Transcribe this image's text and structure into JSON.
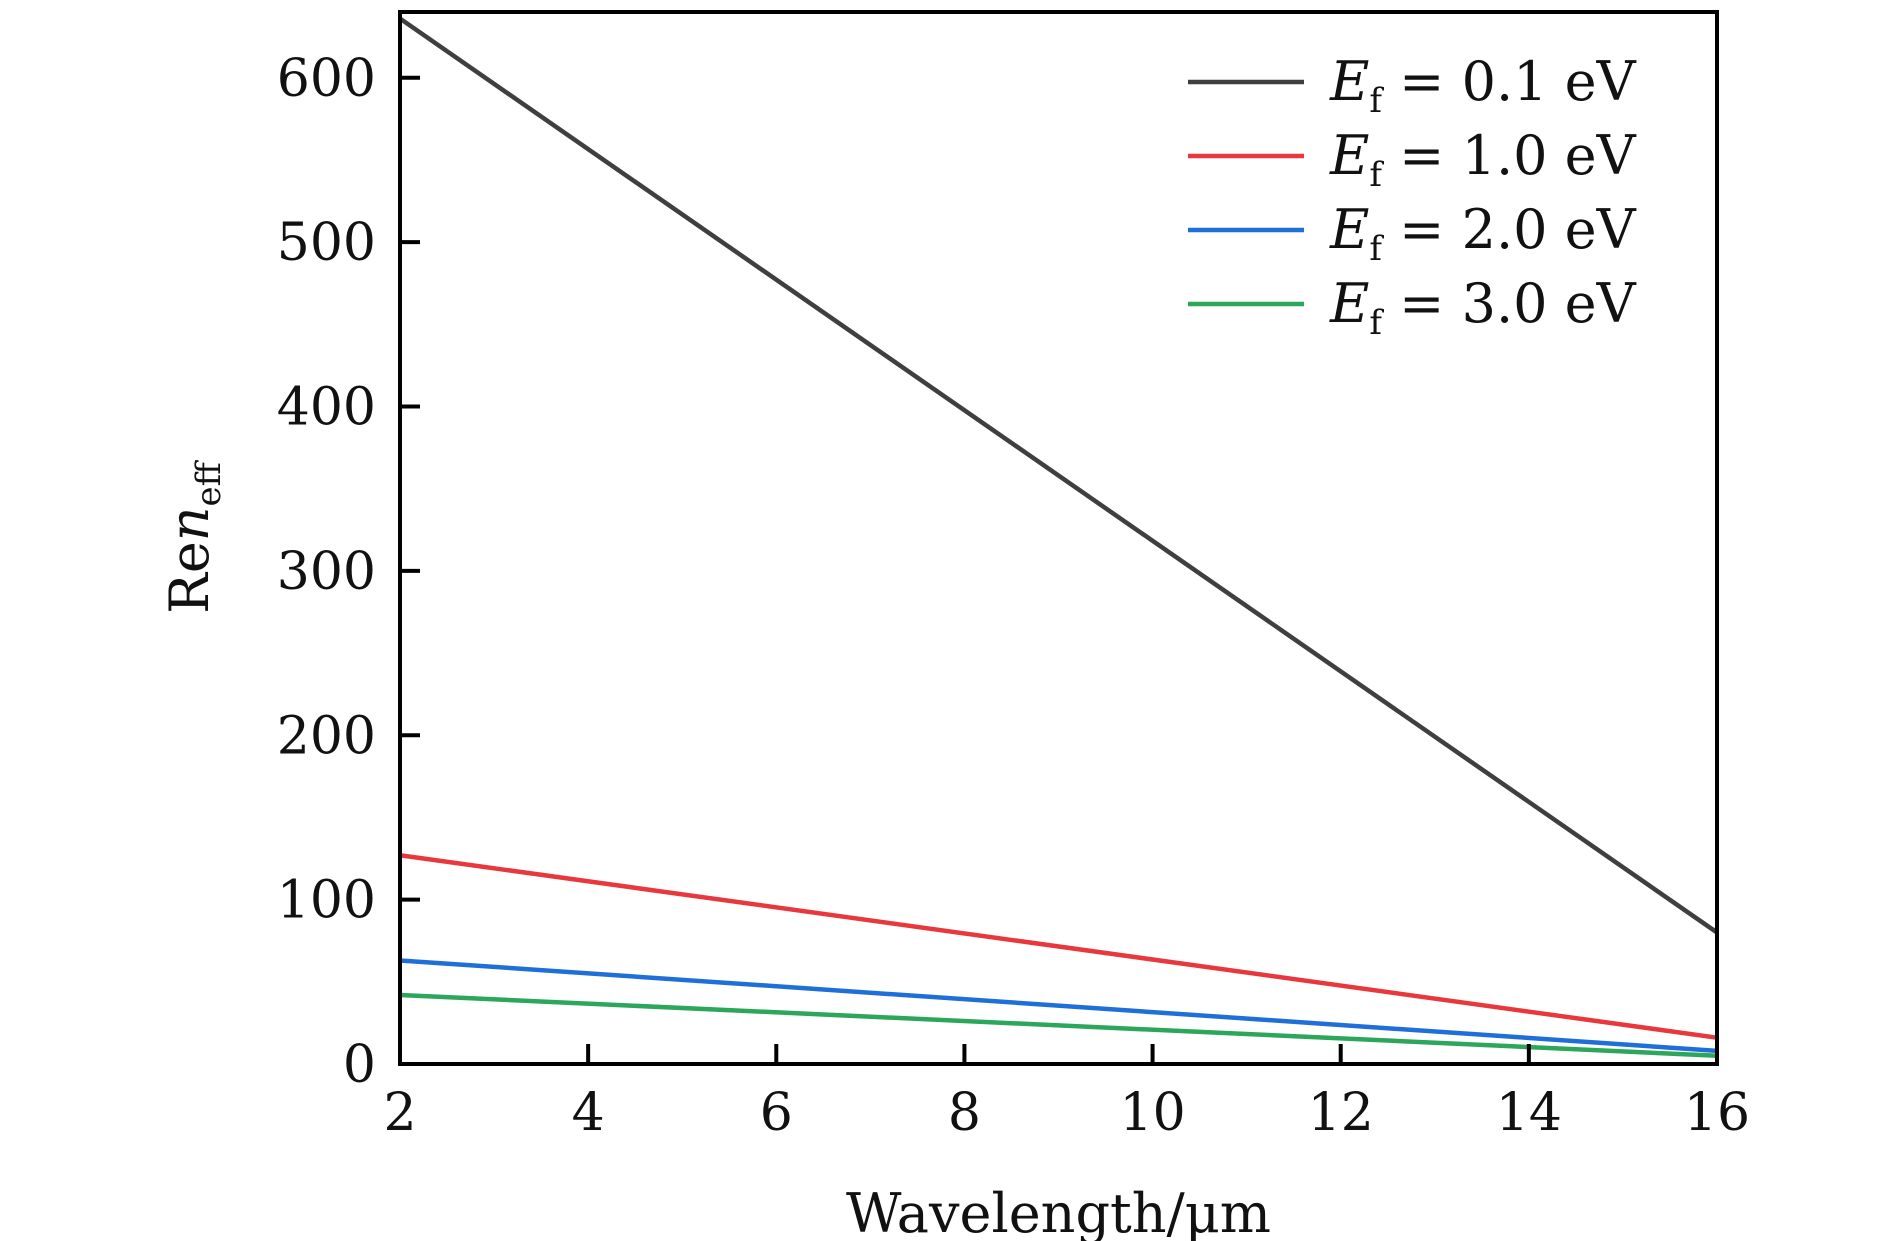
{
  "chart_data": {
    "type": "line",
    "title": "",
    "xlabel": "Wavelength/μm",
    "ylabel": {
      "prefix": "Re",
      "symbol": "n",
      "subscript": "eff"
    },
    "xlim": [
      2,
      16
    ],
    "ylim": [
      0,
      640
    ],
    "xticks": [
      "2",
      "4",
      "6",
      "8",
      "10",
      "12",
      "14",
      "16"
    ],
    "yticks": [
      "0",
      "100",
      "200",
      "300",
      "400",
      "500",
      "600"
    ],
    "grid": false,
    "legend_position": "top-right",
    "series": [
      {
        "name": "Ef = 0.1 eV",
        "label": {
          "symbol": "E",
          "subscript": "f",
          "rest": " = 0.1 eV"
        },
        "color": "#3f3f3f",
        "x": [
          2,
          16
        ],
        "y": [
          636,
          80
        ]
      },
      {
        "name": "Ef = 1.0 eV",
        "label": {
          "symbol": "E",
          "subscript": "f",
          "rest": " = 1.0 eV"
        },
        "color": "#e8383d",
        "x": [
          2,
          16
        ],
        "y": [
          127,
          16
        ]
      },
      {
        "name": "Ef = 2.0 eV",
        "label": {
          "symbol": "E",
          "subscript": "f",
          "rest": " = 2.0 eV"
        },
        "color": "#1f6fd8",
        "x": [
          2,
          16
        ],
        "y": [
          63,
          8
        ]
      },
      {
        "name": "Ef = 3.0 eV",
        "label": {
          "symbol": "E",
          "subscript": "f",
          "rest": " = 3.0 eV"
        },
        "color": "#2ca65a",
        "x": [
          2,
          16
        ],
        "y": [
          42,
          5
        ]
      }
    ]
  }
}
